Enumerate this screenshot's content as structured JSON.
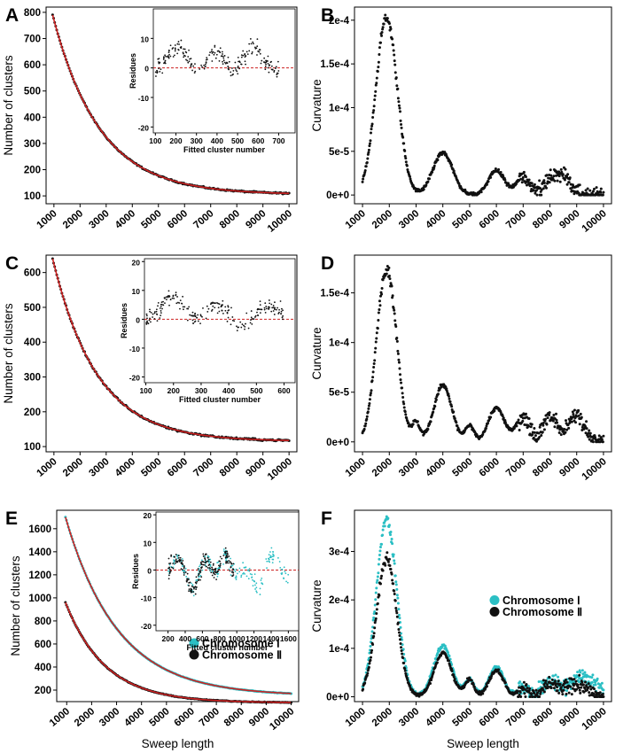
{
  "panel_letters": [
    "A",
    "B",
    "C",
    "D",
    "E",
    "F"
  ],
  "chart_data": [
    {
      "id": "A",
      "type": "scatter",
      "title": "",
      "xlabel": "",
      "ylabel": "Number of clusters",
      "xlim": [
        700,
        10300
      ],
      "ylim": [
        70,
        820
      ],
      "xticks": [
        1000,
        2000,
        3000,
        4000,
        5000,
        6000,
        7000,
        8000,
        9000,
        10000
      ],
      "yticks": [
        100,
        200,
        300,
        400,
        500,
        600,
        700,
        800
      ],
      "curve": {
        "start": 790,
        "end": 105,
        "tau": 1800
      },
      "fit_color": "#cc2222",
      "point_color": "#111111",
      "inset": {
        "type": "scatter",
        "xlabel": "Fitted cluster number",
        "ylabel": "Residues",
        "xlim": [
          90,
          780
        ],
        "ylim": [
          -22,
          20
        ],
        "xticks": [
          100,
          200,
          300,
          400,
          500,
          600,
          700
        ],
        "yticks": [
          -20,
          -10,
          0,
          10
        ],
        "zero_line_color": "#cc2222"
      }
    },
    {
      "id": "B",
      "type": "scatter",
      "title": "",
      "xlabel": "",
      "ylabel": "Curvature",
      "xlim": [
        700,
        10300
      ],
      "ylim": [
        -1e-05,
        0.000215
      ],
      "xticks": [
        1000,
        2000,
        3000,
        4000,
        5000,
        6000,
        7000,
        8000,
        9000,
        10000
      ],
      "yticks": [
        0,
        5e-05,
        0.0001,
        0.00015,
        0.0002
      ],
      "ytick_labels": [
        "0e+0",
        "5e-5",
        "1e-4",
        "1.5e-4",
        "2e-4"
      ],
      "peaks": [
        {
          "x": 1900,
          "y": 0.000203,
          "w": 400
        },
        {
          "x": 4000,
          "y": 4.8e-05,
          "w": 370
        },
        {
          "x": 6000,
          "y": 2.8e-05,
          "w": 300
        },
        {
          "x": 7000,
          "y": 2e-05,
          "w": 260
        },
        {
          "x": 8300,
          "y": 2.5e-05,
          "w": 420
        }
      ],
      "point_color": "#111111"
    },
    {
      "id": "C",
      "type": "scatter",
      "title": "",
      "xlabel": "",
      "ylabel": "Number of clusters",
      "xlim": [
        700,
        10300
      ],
      "ylim": [
        85,
        650
      ],
      "xticks": [
        1000,
        2000,
        3000,
        4000,
        5000,
        6000,
        7000,
        8000,
        9000,
        10000
      ],
      "yticks": [
        100,
        200,
        300,
        400,
        500,
        600
      ],
      "curve": {
        "start": 640,
        "end": 115,
        "tau": 1700
      },
      "fit_color": "#cc2222",
      "point_color": "#111111",
      "inset": {
        "type": "scatter",
        "xlabel": "Fitted cluster number",
        "ylabel": "Residues",
        "xlim": [
          95,
          640
        ],
        "ylim": [
          -22,
          21
        ],
        "xticks": [
          100,
          200,
          300,
          400,
          500,
          600
        ],
        "yticks": [
          -20,
          -10,
          0,
          10,
          20
        ],
        "zero_line_color": "#cc2222"
      }
    },
    {
      "id": "D",
      "type": "scatter",
      "title": "",
      "xlabel": "",
      "ylabel": "Curvature",
      "xlim": [
        700,
        10300
      ],
      "ylim": [
        -1e-05,
        0.000188
      ],
      "xticks": [
        1000,
        2000,
        3000,
        4000,
        5000,
        6000,
        7000,
        8000,
        9000,
        10000
      ],
      "yticks": [
        0,
        5e-05,
        0.0001,
        0.00015
      ],
      "ytick_labels": [
        "0e+0",
        "5e-5",
        "1e-4",
        "1.5e-4"
      ],
      "peaks": [
        {
          "x": 1900,
          "y": 0.000175,
          "w": 370
        },
        {
          "x": 3000,
          "y": 1.8e-05,
          "w": 150
        },
        {
          "x": 4000,
          "y": 5.7e-05,
          "w": 330
        },
        {
          "x": 5000,
          "y": 1.6e-05,
          "w": 160
        },
        {
          "x": 6000,
          "y": 3.4e-05,
          "w": 300
        },
        {
          "x": 7000,
          "y": 2.5e-05,
          "w": 260
        },
        {
          "x": 8000,
          "y": 2.6e-05,
          "w": 260
        },
        {
          "x": 9000,
          "y": 2.7e-05,
          "w": 300
        }
      ],
      "point_color": "#111111"
    },
    {
      "id": "E",
      "type": "scatter",
      "title": "",
      "xlabel": "Sweep length",
      "ylabel": "Number of clusters",
      "xlim": [
        600,
        10300
      ],
      "ylim": [
        100,
        1760
      ],
      "xticks": [
        1000,
        2000,
        3000,
        4000,
        5000,
        6000,
        7000,
        8000,
        9000,
        10000
      ],
      "yticks": [
        200,
        400,
        600,
        800,
        1000,
        1200,
        1400,
        1600
      ],
      "series": [
        {
          "name": "Chromosome Ⅰ",
          "color": "#2bbfc4",
          "curve": {
            "start": 1700,
            "end": 150,
            "tau": 2100
          }
        },
        {
          "name": "Chromosome Ⅱ",
          "color": "#111111",
          "curve": {
            "start": 960,
            "end": 90,
            "tau": 1600
          }
        }
      ],
      "fit_color": "#cc2222",
      "legend_position": "bottom-right",
      "inset": {
        "type": "scatter",
        "xlabel": "Fitted cluster number",
        "ylabel": "Residues",
        "xlim": [
          60,
          1720
        ],
        "ylim": [
          -22,
          21
        ],
        "xticks": [
          200,
          400,
          600,
          800,
          1000,
          1200,
          1400,
          1600
        ],
        "yticks": [
          -20,
          -10,
          0,
          10,
          20
        ],
        "zero_line_color": "#cc2222"
      }
    },
    {
      "id": "F",
      "type": "scatter",
      "title": "",
      "xlabel": "Sweep length",
      "ylabel": "Curvature",
      "xlim": [
        700,
        10300
      ],
      "ylim": [
        -1e-05,
        0.000385
      ],
      "xticks": [
        1000,
        2000,
        3000,
        4000,
        5000,
        6000,
        7000,
        8000,
        9000,
        10000
      ],
      "yticks": [
        0,
        0.0001,
        0.0002,
        0.0003
      ],
      "ytick_labels": [
        "0e+0",
        "1e-4",
        "2e-4",
        "3e-4"
      ],
      "series": [
        {
          "name": "Chromosome Ⅰ",
          "color": "#2bbfc4",
          "peaks": [
            {
              "x": 1900,
              "y": 0.000365,
              "w": 380
            },
            {
              "x": 4000,
              "y": 0.000105,
              "w": 340
            },
            {
              "x": 5000,
              "y": 3.5e-05,
              "w": 180
            },
            {
              "x": 6000,
              "y": 6.2e-05,
              "w": 280
            },
            {
              "x": 7000,
              "y": 2e-05,
              "w": 200
            },
            {
              "x": 8000,
              "y": 3e-05,
              "w": 280
            },
            {
              "x": 9200,
              "y": 4e-05,
              "w": 520
            }
          ]
        },
        {
          "name": "Chromosome Ⅱ",
          "color": "#111111",
          "peaks": [
            {
              "x": 1900,
              "y": 0.000285,
              "w": 380
            },
            {
              "x": 4000,
              "y": 9e-05,
              "w": 330
            },
            {
              "x": 5000,
              "y": 3.5e-05,
              "w": 170
            },
            {
              "x": 6000,
              "y": 5.5e-05,
              "w": 270
            },
            {
              "x": 7000,
              "y": 1.8e-05,
              "w": 200
            },
            {
              "x": 8000,
              "y": 2.5e-05,
              "w": 260
            },
            {
              "x": 9000,
              "y": 2.5e-05,
              "w": 400
            }
          ]
        }
      ],
      "legend_position": "center-right"
    }
  ]
}
